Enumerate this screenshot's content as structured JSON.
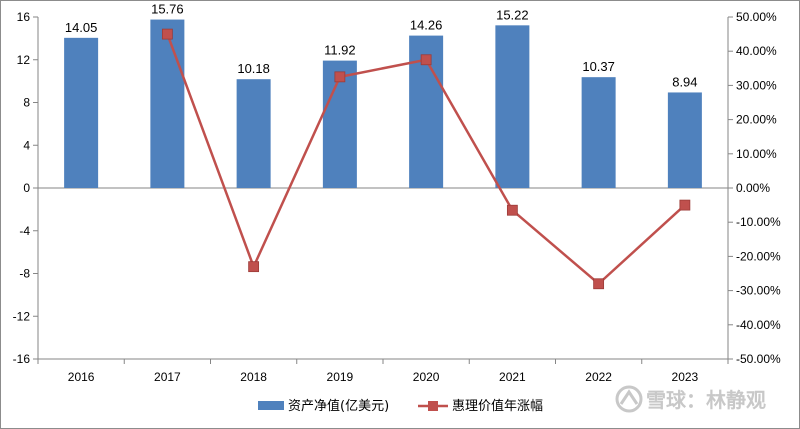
{
  "chart_data": {
    "type": "bar",
    "categories": [
      "2016",
      "2017",
      "2018",
      "2019",
      "2020",
      "2021",
      "2022",
      "2023"
    ],
    "series": [
      {
        "name": "资产净值(亿美元)",
        "type": "bar",
        "axis": "left",
        "color": "#4f81bd",
        "values": [
          14.05,
          15.76,
          10.18,
          11.92,
          14.26,
          15.22,
          10.37,
          8.94
        ],
        "labels": [
          "14.05",
          "15.76",
          "10.18",
          "11.92",
          "14.26",
          "15.22",
          "10.37",
          "8.94"
        ]
      },
      {
        "name": "惠理价值年涨幅",
        "type": "line",
        "axis": "right",
        "color": "#c0504d",
        "values": [
          null,
          45.0,
          -23.0,
          32.5,
          37.5,
          -6.5,
          -28.0,
          -5.0
        ]
      }
    ],
    "left_axis": {
      "ylim": [
        -16,
        16
      ],
      "ticks": [
        16,
        12,
        8,
        4,
        0,
        -4,
        -8,
        -12,
        -16
      ],
      "tick_labels": [
        "16",
        "12",
        "8",
        "4",
        "0",
        "-4",
        "-8",
        "-12",
        "-16"
      ]
    },
    "right_axis": {
      "ylim": [
        -50,
        50
      ],
      "ticks": [
        50,
        40,
        30,
        20,
        10,
        0,
        -10,
        -20,
        -30,
        -40,
        -50
      ],
      "tick_labels": [
        "50.00%",
        "40.00%",
        "30.00%",
        "20.00%",
        "10.00%",
        "0.00%",
        "-10.00%",
        "-20.00%",
        "-30.00%",
        "-40.00%",
        "-50.00%"
      ]
    },
    "legend_position": "bottom",
    "grid": false
  },
  "watermark": {
    "icon": "xueqiu-logo-icon",
    "text": "雪球：林静观"
  }
}
